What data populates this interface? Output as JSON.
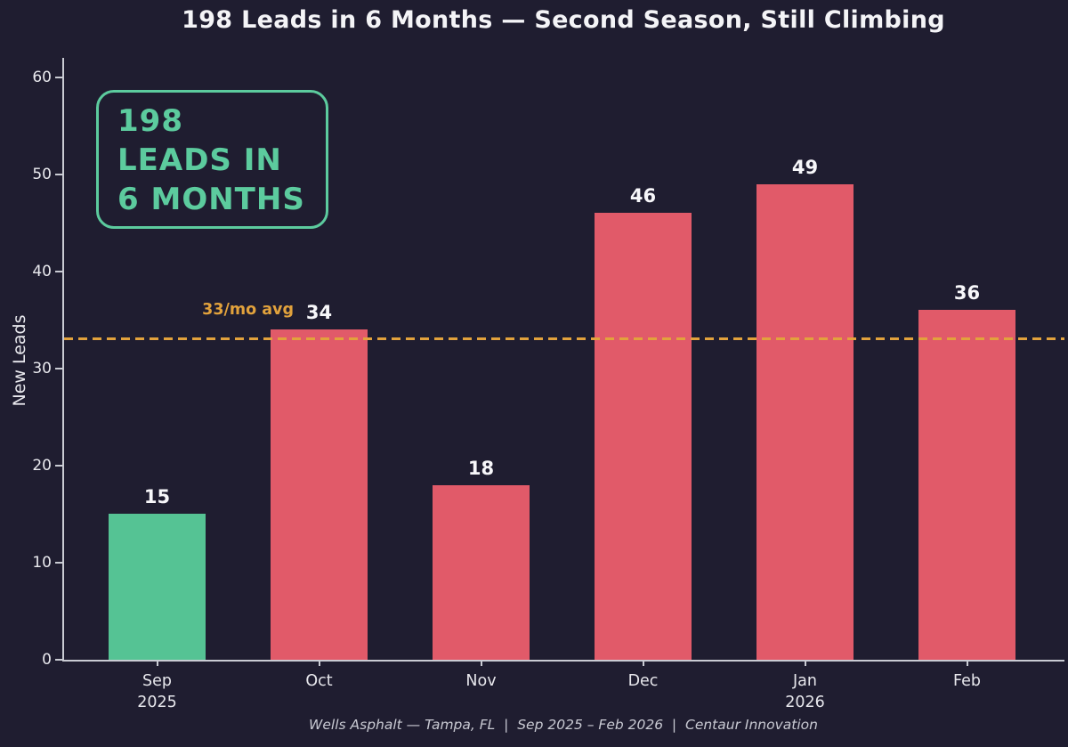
{
  "title": "198 Leads in 6 Months — Second Season, Still Climbing",
  "badge": {
    "lines": [
      "198",
      "LEADS IN",
      "6 MONTHS"
    ]
  },
  "y_axis": {
    "label": "New Leads"
  },
  "average": {
    "label": "33/mo avg",
    "value": 33
  },
  "footer": "Wells Asphalt — Tampa, FL  |  Sep 2025 – Feb 2026  |  Centaur Innovation",
  "colors": {
    "background": "#1f1d30",
    "bar": "#e15a69",
    "highlight_bar": "#55c394",
    "badge_accent": "#5ccb9e",
    "average_line": "#e2a23c",
    "axis": "#c9cbd3",
    "title_text": "#f4f4f7"
  },
  "chart_data": {
    "type": "bar",
    "title": "198 Leads in 6 Months — Second Season, Still Climbing",
    "categories": [
      "Sep\n2025",
      "Oct",
      "Nov",
      "Dec",
      "Jan\n2026",
      "Feb"
    ],
    "values": [
      15,
      34,
      18,
      46,
      49,
      36
    ],
    "xlabel": "",
    "ylabel": "New Leads",
    "ylim": [
      0,
      62
    ],
    "yticks": [
      0,
      10,
      20,
      30,
      40,
      50,
      60
    ],
    "grid": false,
    "legend": "none",
    "total_leads": 198,
    "highlight": {
      "index": 0,
      "category": "Sep 2025",
      "meaning": "first month, teal highlight"
    },
    "annotations": [
      {
        "type": "hline",
        "y": 33,
        "label": "33/mo avg",
        "style": "dashed",
        "color": "#e2a23c"
      }
    ]
  }
}
